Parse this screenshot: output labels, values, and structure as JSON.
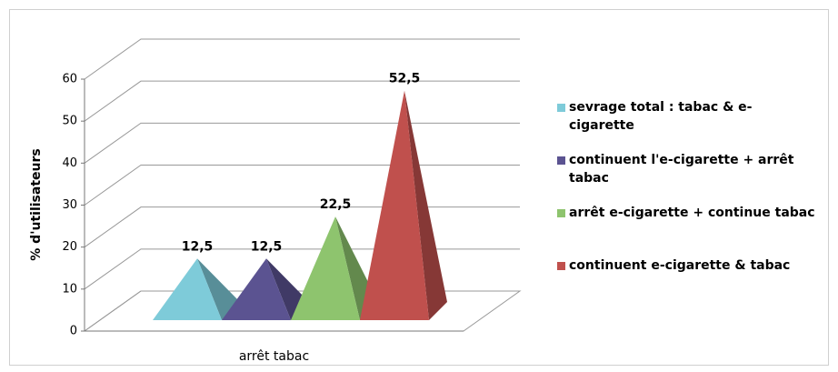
{
  "chart_data": {
    "type": "pyramid3d",
    "y_label": "% d'utilisateurs",
    "categories": [
      "arrêt tabac"
    ],
    "ylim": [
      0,
      60
    ],
    "yticks": [
      0,
      10,
      20,
      30,
      40,
      50,
      60
    ],
    "grid": true,
    "series": [
      {
        "name": "sevrage total : tabac & e-cigarette",
        "color": "#7ecbd9",
        "values": [
          12.5
        ],
        "value_labels": [
          "12,5"
        ]
      },
      {
        "name": "continuent l'e-cigarette + arrêt tabac",
        "color": "#5b5391",
        "values": [
          12.5
        ],
        "value_labels": [
          "12,5"
        ]
      },
      {
        "name": "arrêt e-cigarette + continue tabac",
        "color": "#8ec46e",
        "values": [
          22.5
        ],
        "value_labels": [
          "22,5"
        ]
      },
      {
        "name": "continuent e-cigarette & tabac",
        "color": "#c0504d",
        "values": [
          52.5
        ],
        "value_labels": [
          "52,5"
        ]
      }
    ]
  }
}
